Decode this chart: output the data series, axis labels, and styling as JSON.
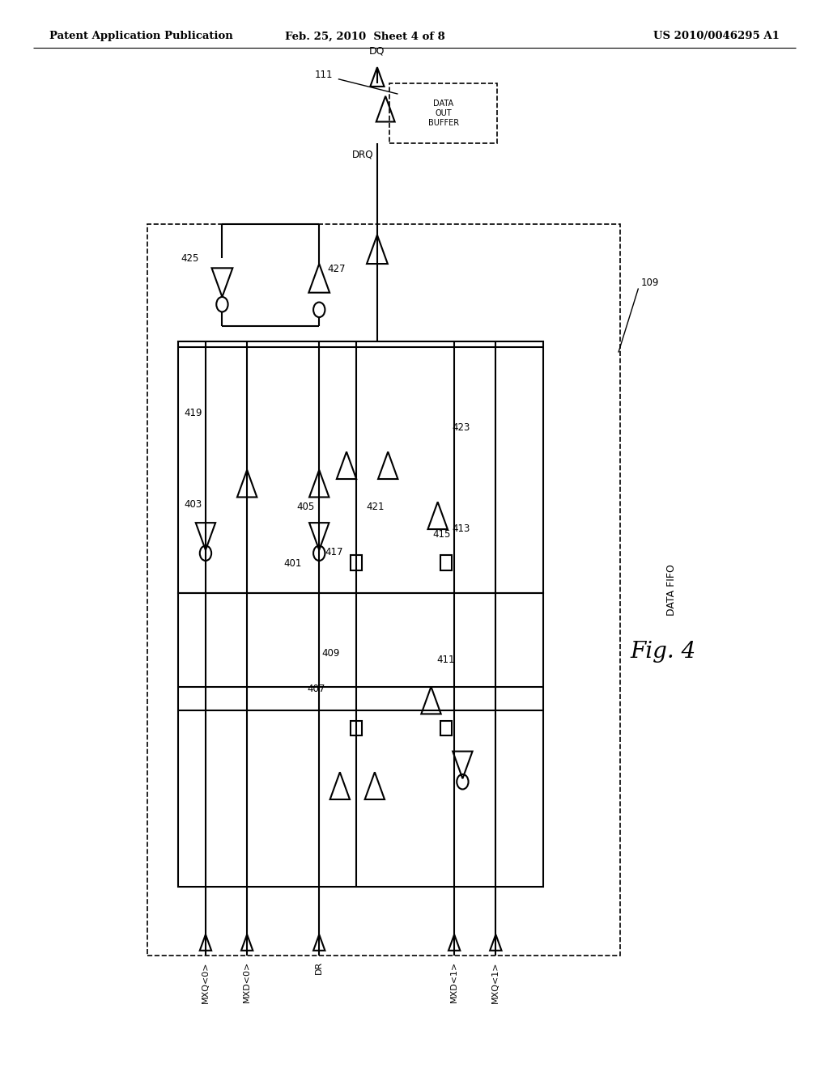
{
  "header_left": "Patent Application Publication",
  "header_center": "Feb. 25, 2010  Sheet 4 of 8",
  "header_right": "US 2010/0046295 A1",
  "fig_label": "Fig. 4",
  "bg_color": "#ffffff",
  "lw": 1.5,
  "dlw": 1.2
}
